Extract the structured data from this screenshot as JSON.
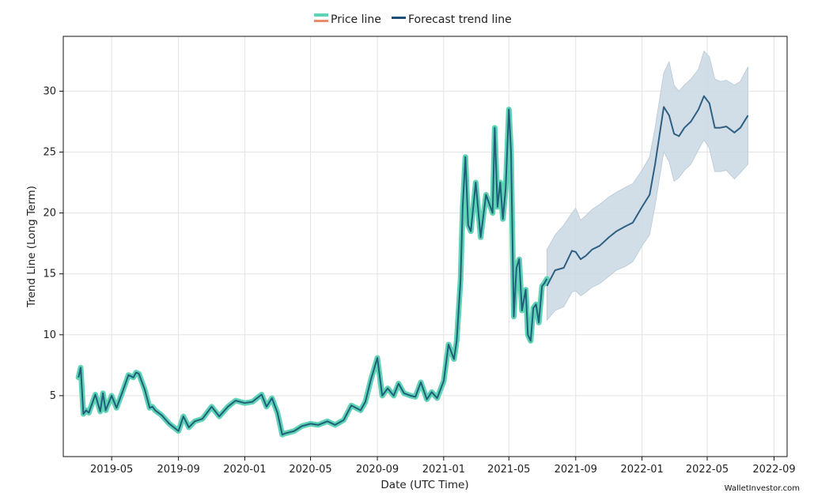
{
  "watermark": "WalletInvestor.com",
  "legend": {
    "placement": "top-center",
    "items": [
      {
        "label": "Price line",
        "color": "#5fd3b5",
        "accent": "#e98a6c"
      },
      {
        "label": "Forecast trend line",
        "color": "#1f4e79"
      }
    ]
  },
  "colors": {
    "price_halo": "#5fd3b5",
    "price_line": "#1f5f7a",
    "forecast_line": "#2e5f82",
    "confidence_band": "#c9d8e3",
    "grid": "#e3e3e3"
  },
  "chart_data": {
    "type": "line",
    "xlabel": "Date (UTC Time)",
    "ylabel": "Trend Line (Long Term)",
    "grid": true,
    "x_range": [
      "2019-02-01",
      "2022-09-25"
    ],
    "ylim": [
      0,
      34.5
    ],
    "x_ticks": [
      "2019-05",
      "2019-09",
      "2020-01",
      "2020-05",
      "2020-09",
      "2021-01",
      "2021-05",
      "2021-09",
      "2022-01",
      "2022-05",
      "2022-09"
    ],
    "y_ticks": [
      5,
      10,
      15,
      20,
      25,
      30
    ],
    "series": [
      {
        "name": "Price line",
        "x": [
          "2019-03-01",
          "2019-03-05",
          "2019-03-10",
          "2019-03-15",
          "2019-03-20",
          "2019-04-01",
          "2019-04-10",
          "2019-04-15",
          "2019-04-20",
          "2019-05-01",
          "2019-05-10",
          "2019-05-20",
          "2019-06-01",
          "2019-06-10",
          "2019-06-15",
          "2019-06-20",
          "2019-07-01",
          "2019-07-10",
          "2019-07-15",
          "2019-07-20",
          "2019-08-01",
          "2019-08-15",
          "2019-09-01",
          "2019-09-10",
          "2019-09-20",
          "2019-10-01",
          "2019-10-15",
          "2019-11-01",
          "2019-11-15",
          "2019-12-01",
          "2019-12-15",
          "2020-01-01",
          "2020-01-15",
          "2020-02-01",
          "2020-02-10",
          "2020-02-20",
          "2020-03-01",
          "2020-03-10",
          "2020-03-15",
          "2020-04-01",
          "2020-04-15",
          "2020-05-01",
          "2020-05-15",
          "2020-06-01",
          "2020-06-15",
          "2020-07-01",
          "2020-07-15",
          "2020-08-01",
          "2020-08-10",
          "2020-08-20",
          "2020-09-01",
          "2020-09-10",
          "2020-09-20",
          "2020-10-01",
          "2020-10-10",
          "2020-10-20",
          "2020-11-01",
          "2020-11-10",
          "2020-11-20",
          "2020-12-01",
          "2020-12-10",
          "2020-12-20",
          "2021-01-01",
          "2021-01-10",
          "2021-01-20",
          "2021-01-25",
          "2021-02-01",
          "2021-02-05",
          "2021-02-10",
          "2021-02-15",
          "2021-02-20",
          "2021-03-01",
          "2021-03-10",
          "2021-03-20",
          "2021-04-01",
          "2021-04-05",
          "2021-04-10",
          "2021-04-15",
          "2021-04-20",
          "2021-04-25",
          "2021-05-01",
          "2021-05-05",
          "2021-05-10",
          "2021-05-15",
          "2021-05-20",
          "2021-05-25",
          "2021-06-01",
          "2021-06-05",
          "2021-06-10",
          "2021-06-15",
          "2021-06-20",
          "2021-06-25",
          "2021-07-01",
          "2021-07-05",
          "2021-07-10"
        ],
        "values": [
          6.5,
          7.3,
          3.5,
          3.8,
          3.6,
          5.1,
          3.7,
          5.2,
          3.8,
          5.0,
          4.0,
          5.2,
          6.7,
          6.5,
          6.9,
          6.8,
          5.5,
          4.0,
          4.1,
          3.8,
          3.4,
          2.7,
          2.1,
          3.3,
          2.4,
          2.9,
          3.1,
          4.1,
          3.3,
          4.1,
          4.6,
          4.4,
          4.5,
          5.1,
          4.1,
          4.8,
          3.6,
          1.8,
          1.9,
          2.1,
          2.5,
          2.7,
          2.6,
          2.9,
          2.6,
          3.0,
          4.2,
          3.8,
          4.5,
          6.3,
          8.1,
          5.0,
          5.6,
          5.0,
          6.0,
          5.2,
          5.0,
          4.9,
          6.1,
          4.7,
          5.3,
          4.8,
          6.2,
          9.2,
          8.0,
          9.5,
          14.5,
          20.5,
          24.6,
          19.0,
          18.5,
          22.5,
          18.0,
          21.5,
          20.0,
          27.0,
          20.5,
          22.5,
          19.5,
          22.0,
          28.5,
          25.0,
          11.5,
          15.5,
          16.2,
          12.0,
          13.7,
          10.0,
          9.5,
          12.2,
          12.5,
          11.0,
          14.0,
          14.2,
          14.6
        ]
      },
      {
        "name": "Forecast trend line",
        "x": [
          "2021-07-10",
          "2021-07-25",
          "2021-08-10",
          "2021-08-25",
          "2021-09-01",
          "2021-09-10",
          "2021-09-20",
          "2021-10-01",
          "2021-10-15",
          "2021-11-01",
          "2021-11-15",
          "2021-12-01",
          "2021-12-15",
          "2022-01-01",
          "2022-01-15",
          "2022-01-25",
          "2022-02-10",
          "2022-02-20",
          "2022-03-01",
          "2022-03-10",
          "2022-03-20",
          "2022-04-01",
          "2022-04-15",
          "2022-04-25",
          "2022-05-05",
          "2022-05-15",
          "2022-05-25",
          "2022-06-05",
          "2022-06-20",
          "2022-07-01",
          "2022-07-15"
        ],
        "values": [
          14.0,
          15.3,
          15.5,
          16.9,
          16.8,
          16.2,
          16.5,
          17.0,
          17.3,
          18.0,
          18.5,
          18.9,
          19.2,
          20.5,
          21.5,
          24.0,
          28.7,
          28.0,
          26.5,
          26.3,
          27.0,
          27.5,
          28.5,
          29.6,
          29.0,
          27.0,
          27.0,
          27.1,
          26.6,
          27.0,
          28.0
        ]
      }
    ],
    "confidence_band": {
      "x": [
        "2021-07-10",
        "2021-07-25",
        "2021-08-10",
        "2021-08-25",
        "2021-09-01",
        "2021-09-10",
        "2021-09-20",
        "2021-10-01",
        "2021-10-15",
        "2021-11-01",
        "2021-11-15",
        "2021-12-01",
        "2021-12-15",
        "2022-01-01",
        "2022-01-15",
        "2022-01-25",
        "2022-02-10",
        "2022-02-20",
        "2022-03-01",
        "2022-03-10",
        "2022-03-20",
        "2022-04-01",
        "2022-04-15",
        "2022-04-25",
        "2022-05-05",
        "2022-05-15",
        "2022-05-25",
        "2022-06-05",
        "2022-06-20",
        "2022-07-01",
        "2022-07-15"
      ],
      "upper": [
        17.0,
        18.2,
        19.0,
        20.0,
        20.4,
        19.4,
        19.8,
        20.3,
        20.7,
        21.3,
        21.7,
        22.1,
        22.4,
        23.5,
        24.6,
        27.0,
        31.5,
        32.4,
        30.5,
        30.0,
        30.5,
        31.0,
        31.8,
        33.3,
        32.8,
        31.0,
        30.8,
        30.9,
        30.5,
        30.8,
        32.0
      ],
      "lower": [
        11.2,
        12.0,
        12.3,
        13.5,
        13.6,
        13.2,
        13.5,
        13.9,
        14.2,
        14.8,
        15.3,
        15.6,
        16.0,
        17.3,
        18.2,
        20.6,
        25.0,
        24.2,
        22.6,
        22.9,
        23.5,
        24.0,
        25.2,
        26.0,
        25.3,
        23.4,
        23.4,
        23.5,
        22.8,
        23.3,
        24.0
      ]
    }
  }
}
